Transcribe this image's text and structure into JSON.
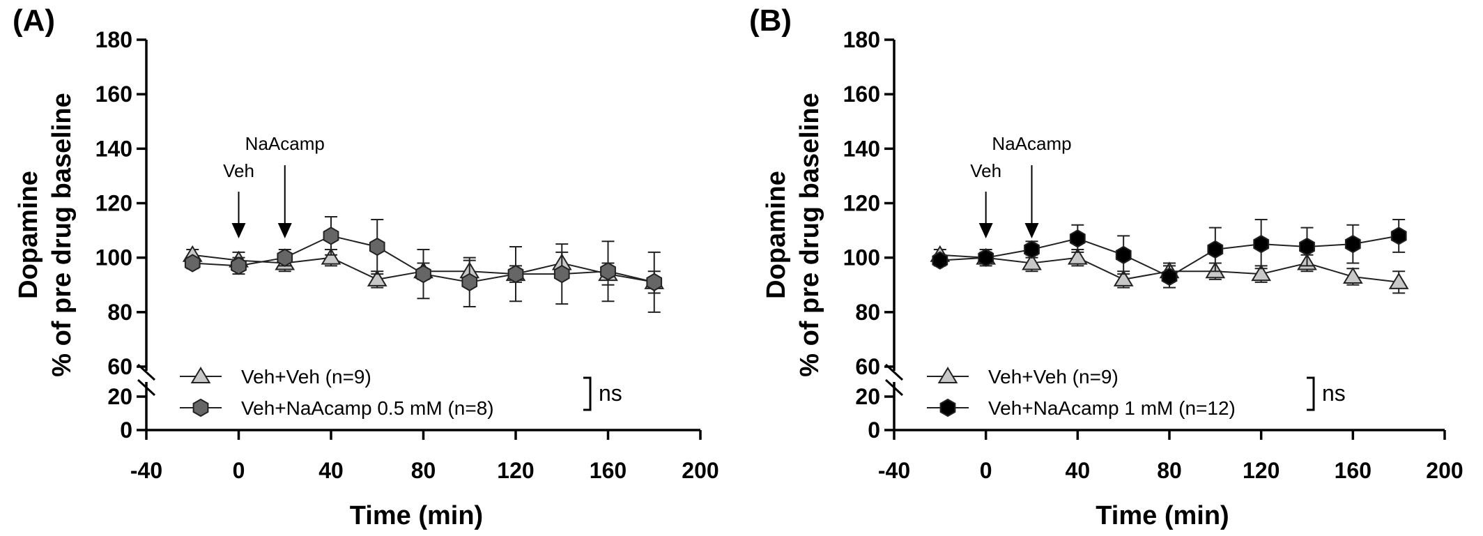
{
  "chart_data": [
    {
      "type": "line",
      "panel_label": "(A)",
      "xlabel": "Time (min)",
      "ylabel_line1": "Dopamine",
      "ylabel_line2": "% of pre drug baseline",
      "xlim": [
        -40,
        200
      ],
      "xticks": [
        -40,
        0,
        40,
        80,
        120,
        160,
        200
      ],
      "xtick_labels": [
        "-40",
        "0",
        "40",
        "80",
        "120",
        "160",
        "200"
      ],
      "ylim_upper": [
        60,
        180
      ],
      "ylim_lower": [
        0,
        20
      ],
      "yticks": [
        0,
        20,
        60,
        80,
        100,
        120,
        140,
        160,
        180
      ],
      "ytick_labels": [
        "0",
        "20",
        "60",
        "80",
        "100",
        "120",
        "140",
        "160",
        "180"
      ],
      "broken_y_axis": true,
      "annotations": [
        {
          "text": "Veh",
          "x": 0,
          "type": "arrow"
        },
        {
          "text": "NaAcamp",
          "x": 20,
          "type": "arrow"
        }
      ],
      "significance": "ns",
      "legend_position": "bottom-center",
      "series": [
        {
          "name": "Veh+Veh (n=9)",
          "marker": "triangle",
          "color": "#c8c8c8",
          "x": [
            -20,
            0,
            20,
            40,
            60,
            80,
            100,
            120,
            140,
            160,
            180
          ],
          "y": [
            101,
            99,
            98,
            100,
            92,
            95,
            95,
            94,
            98,
            94,
            91
          ],
          "err": [
            2,
            3,
            3,
            3,
            3,
            3,
            4,
            3,
            4,
            4,
            4
          ]
        },
        {
          "name": "Veh+NaAcamp 0.5 mM (n=8)",
          "marker": "hexagon",
          "color": "#666666",
          "x": [
            -20,
            0,
            20,
            40,
            60,
            80,
            100,
            120,
            140,
            160,
            180
          ],
          "y": [
            98,
            97,
            100,
            108,
            104,
            94,
            91,
            94,
            94,
            95,
            91
          ],
          "err": [
            2,
            3,
            3,
            7,
            10,
            9,
            9,
            10,
            11,
            11,
            11
          ]
        }
      ]
    },
    {
      "type": "line",
      "panel_label": "(B)",
      "xlabel": "Time (min)",
      "ylabel_line1": "Dopamine",
      "ylabel_line2": "% of pre drug baseline",
      "xlim": [
        -40,
        200
      ],
      "xticks": [
        -40,
        0,
        40,
        80,
        120,
        160,
        200
      ],
      "xtick_labels": [
        "-40",
        "0",
        "40",
        "80",
        "120",
        "160",
        "200"
      ],
      "ylim_upper": [
        60,
        180
      ],
      "ylim_lower": [
        0,
        20
      ],
      "yticks": [
        0,
        20,
        60,
        80,
        100,
        120,
        140,
        160,
        180
      ],
      "ytick_labels": [
        "0",
        "20",
        "60",
        "80",
        "100",
        "120",
        "140",
        "160",
        "180"
      ],
      "broken_y_axis": true,
      "annotations": [
        {
          "text": "Veh",
          "x": 0,
          "type": "arrow"
        },
        {
          "text": "NaAcamp",
          "x": 20,
          "type": "arrow"
        }
      ],
      "significance": "ns",
      "legend_position": "bottom-center",
      "series": [
        {
          "name": "Veh+Veh (n=9)",
          "marker": "triangle",
          "color": "#c8c8c8",
          "x": [
            -20,
            0,
            20,
            40,
            60,
            80,
            100,
            120,
            140,
            160,
            180
          ],
          "y": [
            101,
            100,
            98,
            100,
            92,
            95,
            95,
            94,
            98,
            93,
            91
          ],
          "err": [
            2,
            3,
            3,
            3,
            3,
            3,
            3,
            3,
            3,
            3,
            4
          ]
        },
        {
          "name": "Veh+NaAcamp 1 mM (n=12)",
          "marker": "hexagon",
          "color": "#000000",
          "x": [
            -20,
            0,
            20,
            40,
            60,
            80,
            100,
            120,
            140,
            160,
            180
          ],
          "y": [
            99,
            100,
            103,
            107,
            101,
            93,
            103,
            105,
            104,
            105,
            108
          ],
          "err": [
            2,
            2,
            3,
            5,
            7,
            4,
            8,
            9,
            7,
            7,
            6
          ]
        }
      ]
    }
  ]
}
